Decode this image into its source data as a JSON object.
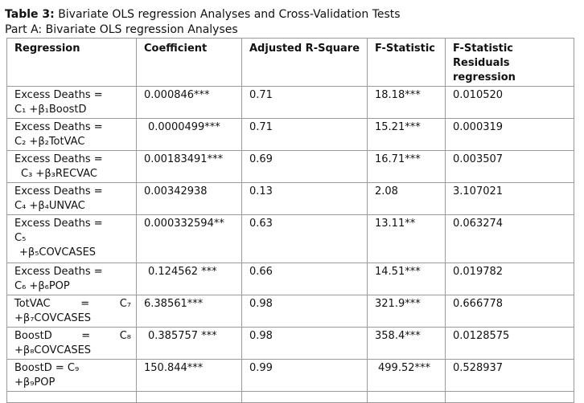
{
  "caption": {
    "table_label": "Table 3:",
    "table_title": "Bivariate OLS regression Analyses and Cross-Validation Tests",
    "part_title": "Part A: Bivariate OLS regression Analyses"
  },
  "table": {
    "headers": [
      "Regression",
      "Coefficient",
      "Adjusted R-Square",
      "F-Statistic",
      "F-Statistic Residuals regression"
    ],
    "rows": [
      {
        "regression_line1": "Excess Deaths =",
        "regression_line2": "C₁ +β₁BoostD",
        "coefficient": "0.000846***",
        "adj_r_square": "0.71",
        "f_statistic": "18.18***",
        "f_stat_residuals": "0.010520"
      },
      {
        "regression_line1": "Excess Deaths =",
        "regression_line2": "C₂ +β₂TotVAC",
        "coefficient": "0.0000499***",
        "adj_r_square": "0.71",
        "f_statistic": "15.21***",
        "f_stat_residuals": "0.000319"
      },
      {
        "regression_line1": "Excess Deaths =",
        "regression_line2": "C₃ +β₃RECVAC",
        "coefficient": "0.00183491***",
        "adj_r_square": "0.69",
        "f_statistic": "16.71***",
        "f_stat_residuals": "0.003507"
      },
      {
        "regression_line1": "Excess Deaths =",
        "regression_line2": "C₄ +β₄UNVAC",
        "coefficient": "0.00342938",
        "adj_r_square": "0.13",
        "f_statistic": "2.08",
        "f_stat_residuals": "3.107021"
      },
      {
        "regression_line1": "Excess Deaths =",
        "regression_line2": "C₅",
        "regression_line3": "+β₅COVCASES",
        "coefficient": "0.000332594**",
        "adj_r_square": "0.63",
        "f_statistic": "13.11**",
        "f_stat_residuals": "0.063274"
      },
      {
        "regression_line1": "Excess Deaths =",
        "regression_line2": "C₆ +β₆POP",
        "coefficient": "0.124562 ***",
        "adj_r_square": "0.66",
        "f_statistic": "14.51***",
        "f_stat_residuals": "0.019782"
      },
      {
        "regression_line1_parts": [
          "TotVAC",
          "=",
          "C₇"
        ],
        "regression_line2": "+β₇COVCASES",
        "coefficient": "6.38561***",
        "adj_r_square": "0.98",
        "f_statistic": "321.9***",
        "f_stat_residuals": "0.666778"
      },
      {
        "regression_line1_parts": [
          "BoostD",
          "=",
          "C₈"
        ],
        "regression_line2": "+β₈COVCASES",
        "coefficient": "0.385757 ***",
        "adj_r_square": "0.98",
        "f_statistic": "358.4***",
        "f_stat_residuals": "0.0128575"
      },
      {
        "regression_line1": "BoostD = C₉",
        "regression_line2": "+β₉POP",
        "coefficient": "150.844***",
        "adj_r_square": "0.99",
        "f_statistic": "499.52***",
        "f_stat_residuals": "0.528937"
      }
    ]
  }
}
